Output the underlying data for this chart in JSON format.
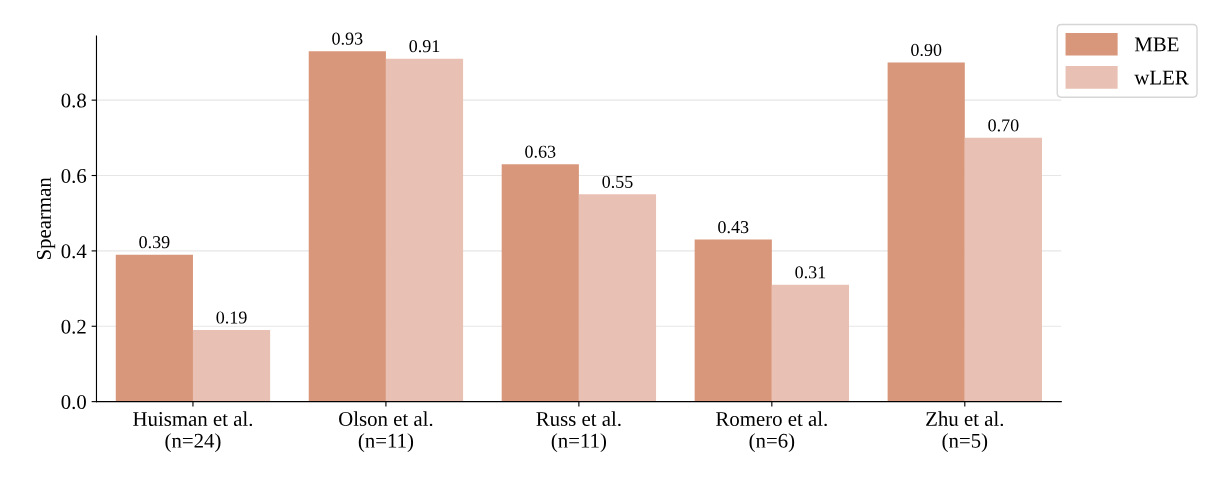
{
  "chart_data": {
    "type": "bar",
    "ylabel": "Spearman",
    "categories": [
      "Huisman et al.\n(n=24)",
      "Olson et al.\n(n=11)",
      "Russ et al.\n(n=11)",
      "Romero et al.\n(n=6)",
      "Zhu et al.\n(n=5)"
    ],
    "series": [
      {
        "name": "MBE",
        "color": "#d8967a",
        "values": [
          0.39,
          0.93,
          0.63,
          0.43,
          0.9
        ],
        "value_labels": [
          "0.39",
          "0.93",
          "0.63",
          "0.43",
          "0.90"
        ]
      },
      {
        "name": "wLER",
        "color": "#e8c1b4",
        "values": [
          0.19,
          0.91,
          0.55,
          0.31,
          0.7
        ],
        "value_labels": [
          "0.19",
          "0.91",
          "0.55",
          "0.31",
          "0.70"
        ]
      }
    ],
    "ylim": [
      0,
      0.97
    ],
    "yticks": [
      {
        "value": 0,
        "label": "0.0"
      },
      {
        "value": 0.2,
        "label": "0.2"
      },
      {
        "value": 0.4,
        "label": "0.4"
      },
      {
        "value": 0.6,
        "label": "0.6"
      },
      {
        "value": 0.8,
        "label": "0.8"
      }
    ],
    "grid": "y",
    "legend": "top right"
  }
}
